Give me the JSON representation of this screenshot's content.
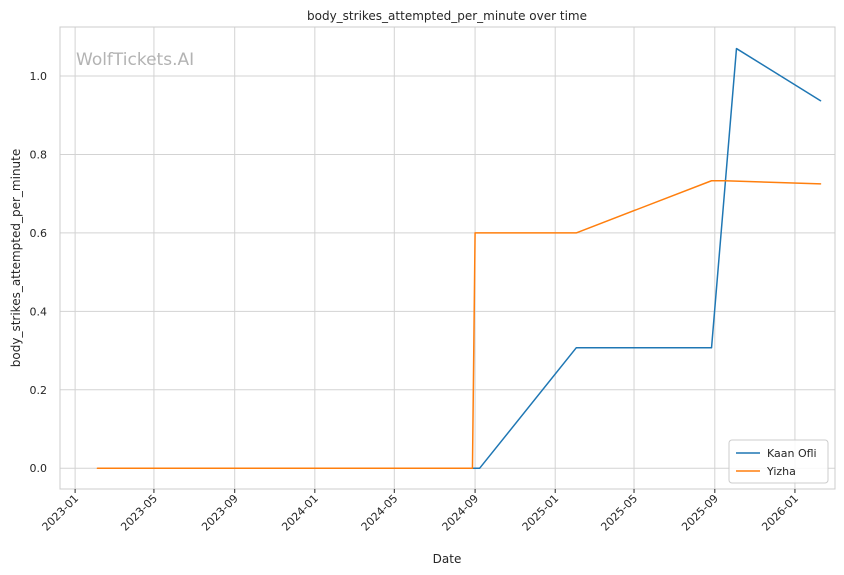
{
  "chart_data": {
    "type": "line",
    "title": "body_strikes_attempted_per_minute over time",
    "xlabel": "Date",
    "ylabel": "body_strikes_attempted_per_minute",
    "watermark": "WolfTickets.AI",
    "xlim": [
      "2022-12-09",
      "2026-03-03"
    ],
    "ylim": [
      -0.053,
      1.125
    ],
    "x_ticks": [
      "2023-01",
      "2023-05",
      "2023-09",
      "2024-01",
      "2024-05",
      "2024-09",
      "2025-01",
      "2025-05",
      "2025-09",
      "2026-01"
    ],
    "y_ticks": [
      0.0,
      0.2,
      0.4,
      0.6,
      0.8,
      1.0
    ],
    "y_tick_labels": [
      "0.0",
      "0.2",
      "0.4",
      "0.6",
      "0.8",
      "1.0"
    ],
    "grid": true,
    "legend_position": "bottom-right",
    "series": [
      {
        "name": "Kaan Ofli",
        "color": "#1f77b4",
        "points": [
          {
            "x": "2024-08-28",
            "y": 0.0
          },
          {
            "x": "2024-09-08",
            "y": 0.0
          },
          {
            "x": "2025-02-02",
            "y": 0.307
          },
          {
            "x": "2025-08-27",
            "y": 0.307
          },
          {
            "x": "2025-10-04",
            "y": 1.07
          },
          {
            "x": "2026-02-09",
            "y": 0.937
          }
        ]
      },
      {
        "name": "Yizha",
        "color": "#ff7f0e",
        "points": [
          {
            "x": "2023-02-04",
            "y": 0.0
          },
          {
            "x": "2024-08-28",
            "y": 0.0
          },
          {
            "x": "2024-09-01",
            "y": 0.6
          },
          {
            "x": "2025-02-02",
            "y": 0.6
          },
          {
            "x": "2025-08-27",
            "y": 0.733
          },
          {
            "x": "2025-09-16",
            "y": 0.733
          },
          {
            "x": "2026-02-09",
            "y": 0.725
          }
        ]
      }
    ]
  }
}
